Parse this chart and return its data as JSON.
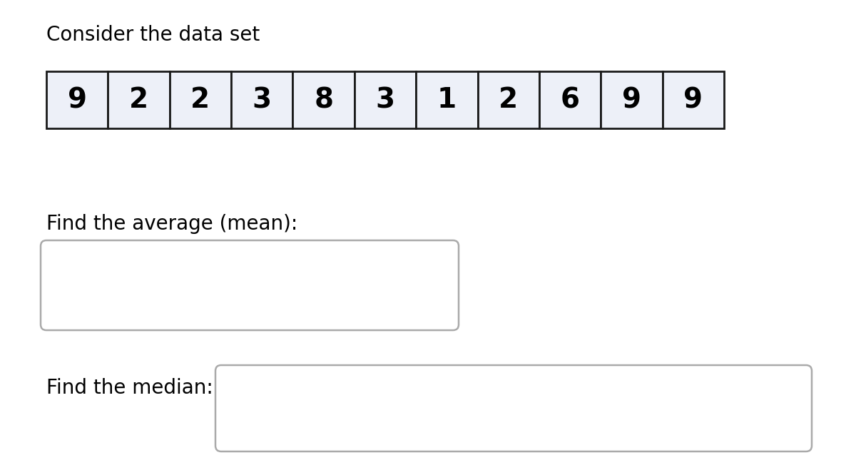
{
  "title": "Consider the data set",
  "data_values": [
    9,
    2,
    2,
    3,
    8,
    3,
    1,
    2,
    6,
    9,
    9
  ],
  "cell_fill_color": "#edf0f8",
  "cell_border_color": "#1a1a1a",
  "label_mean": "Find the average (mean):",
  "label_median": "Find the median:",
  "bg_color": "#ffffff",
  "text_color": "#000000",
  "title_fontsize": 20,
  "data_fontsize": 28,
  "label_fontsize": 20,
  "box_edge_color": "#aaaaaa",
  "fig_width": 12.0,
  "fig_height": 6.52,
  "dpi": 100
}
